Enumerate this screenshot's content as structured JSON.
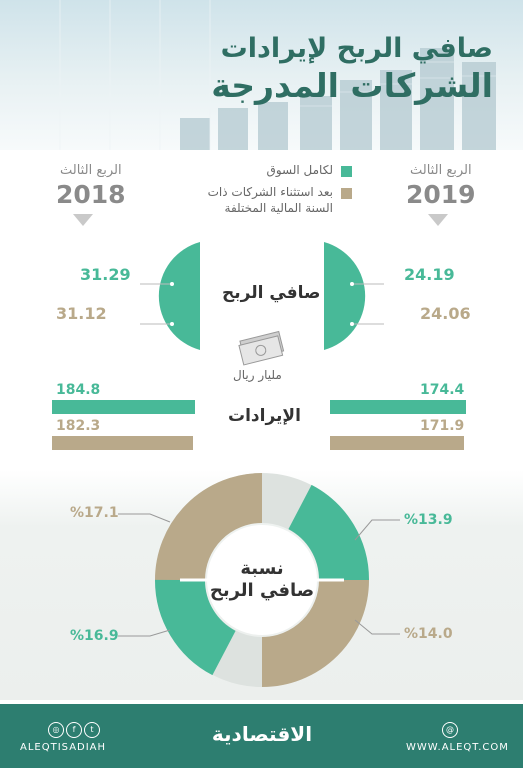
{
  "header": {
    "title_line1": "صافي الربح لإيرادات",
    "title_line2": "الشركات المدرجة"
  },
  "periods": {
    "left": {
      "quarter_label": "الربع الثالث",
      "year": "2018"
    },
    "right": {
      "quarter_label": "الربع الثالث",
      "year": "2019"
    }
  },
  "legend": {
    "items": [
      {
        "label": "لكامل السوق",
        "color": "#48b998"
      },
      {
        "label_line1": "بعد استثناء الشركات ذات",
        "label_line2": "السنة المالية المختلفة",
        "color": "#b9a98a"
      }
    ]
  },
  "net_profit": {
    "label": "صافي الربح",
    "unit": "مليار ريال",
    "left": {
      "market": "31.29",
      "excluding": "31.12"
    },
    "right": {
      "market": "24.19",
      "excluding": "24.06"
    }
  },
  "revenues": {
    "label": "الإيرادات",
    "left": {
      "market": "184.8",
      "excluding": "182.3"
    },
    "right": {
      "market": "174.4",
      "excluding": "171.9"
    }
  },
  "net_margin": {
    "title_line1": "نسبة",
    "title_line2": "صافي الربح",
    "left_top": "%17.1",
    "left_bottom": "%16.9",
    "right_top": "%13.9",
    "right_bottom": "%14.0"
  },
  "footer": {
    "handle": "ALEQTISADIAH",
    "brand": "الاقتصادية",
    "website": "WWW.ALEQT.COM"
  },
  "colors": {
    "green": "#48b998",
    "tan": "#b9a98a",
    "footer": "#2d7e70",
    "title": "#2f6e63"
  }
}
